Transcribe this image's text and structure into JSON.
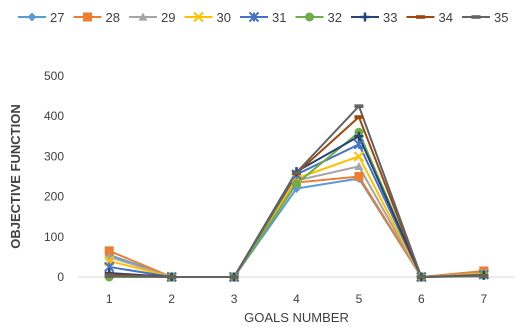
{
  "chart_data": {
    "type": "line",
    "title": "",
    "xlabel": "GOALS NUMBER",
    "ylabel": "OBJECTIVE FUNCTION",
    "categories": [
      "1",
      "2",
      "3",
      "4",
      "5",
      "6",
      "7"
    ],
    "ylim": [
      0,
      500
    ],
    "yticks": [
      0,
      100,
      200,
      300,
      400,
      500
    ],
    "grid": false,
    "legend_position": "top",
    "series": [
      {
        "name": "27",
        "color": "#5b9bd5",
        "marker": "diamond",
        "values": [
          55,
          0,
          0,
          220,
          245,
          0,
          5
        ]
      },
      {
        "name": "28",
        "color": "#ed7d31",
        "marker": "square",
        "values": [
          65,
          0,
          0,
          235,
          250,
          0,
          15
        ]
      },
      {
        "name": "29",
        "color": "#a5a5a5",
        "marker": "triangle",
        "values": [
          50,
          0,
          0,
          240,
          275,
          0,
          10
        ]
      },
      {
        "name": "30",
        "color": "#ffc000",
        "marker": "x",
        "values": [
          40,
          0,
          0,
          245,
          300,
          0,
          8
        ]
      },
      {
        "name": "31",
        "color": "#4472c4",
        "marker": "star",
        "values": [
          25,
          0,
          0,
          255,
          330,
          0,
          6
        ]
      },
      {
        "name": "32",
        "color": "#70ad47",
        "marker": "circle",
        "values": [
          0,
          0,
          0,
          232,
          360,
          0,
          5
        ]
      },
      {
        "name": "33",
        "color": "#264478",
        "marker": "plus",
        "values": [
          10,
          0,
          0,
          262,
          350,
          0,
          4
        ]
      },
      {
        "name": "34",
        "color": "#9e480e",
        "marker": "dash",
        "values": [
          5,
          0,
          0,
          258,
          398,
          0,
          3
        ]
      },
      {
        "name": "35",
        "color": "#636363",
        "marker": "dash",
        "values": [
          2,
          0,
          0,
          260,
          425,
          0,
          2
        ]
      }
    ]
  }
}
